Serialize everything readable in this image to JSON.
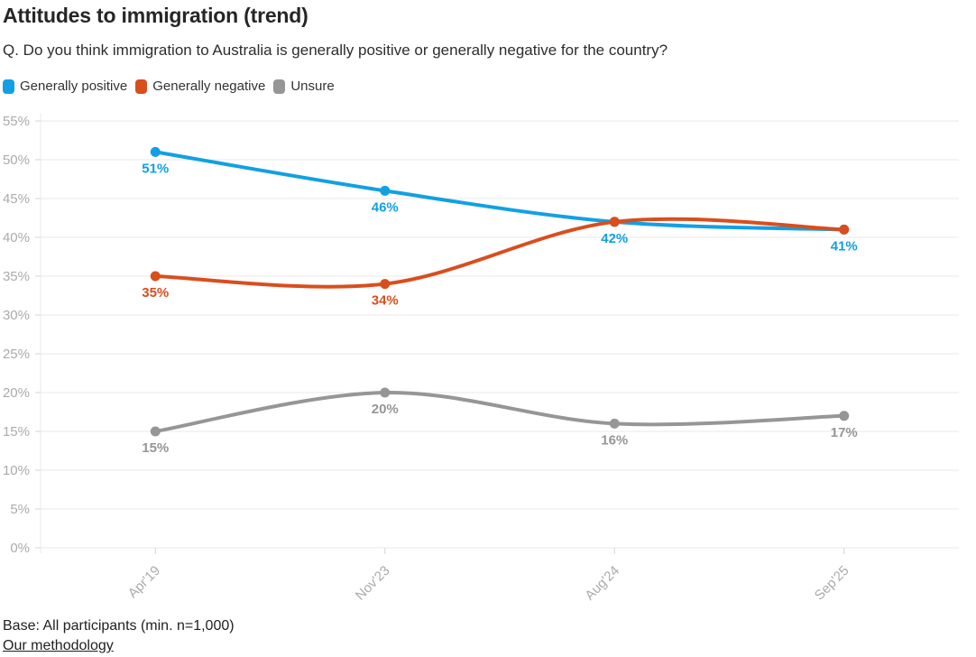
{
  "header": {
    "title": "Attitudes to immigration (trend)",
    "subtitle": "Q. Do you think immigration to Australia is generally positive or generally negative for the country?"
  },
  "legend": {
    "items": [
      {
        "label": "Generally positive",
        "color": "#12a0e2"
      },
      {
        "label": "Generally negative",
        "color": "#d94e1d"
      },
      {
        "label": "Unsure",
        "color": "#969696"
      }
    ]
  },
  "chart_data": {
    "type": "line",
    "title": "Attitudes to immigration (trend)",
    "subtitle": "Q. Do you think immigration to Australia is generally positive or generally negative for the country?",
    "categories": [
      "Apr'19",
      "Nov'23",
      "Aug'24",
      "Sep'25"
    ],
    "series": [
      {
        "name": "Generally positive",
        "color": "#12a0e2",
        "values": [
          51,
          46,
          42,
          41
        ],
        "show_labels": [
          true,
          true,
          true,
          true
        ]
      },
      {
        "name": "Generally negative",
        "color": "#d94e1d",
        "values": [
          35,
          34,
          42,
          41
        ],
        "show_labels": [
          true,
          true,
          false,
          false
        ]
      },
      {
        "name": "Unsure",
        "color": "#969696",
        "values": [
          15,
          20,
          16,
          17
        ],
        "show_labels": [
          true,
          true,
          true,
          true
        ]
      }
    ],
    "xlabel": "",
    "ylabel": "",
    "ylim": [
      0,
      55
    ],
    "ytick_step": 5,
    "tick_suffix": "%",
    "grid": true,
    "legend_position": "top",
    "curve": "smooth",
    "x_label_rotation": -45
  },
  "colors": {
    "gridline": "#e9e9e9",
    "axis_tick": "#d4d4d4",
    "axis_text": "#ababab"
  },
  "footer": {
    "base_note": "Base: All participants (min. n=1,000)",
    "methodology_link_label": "Our methodology"
  }
}
